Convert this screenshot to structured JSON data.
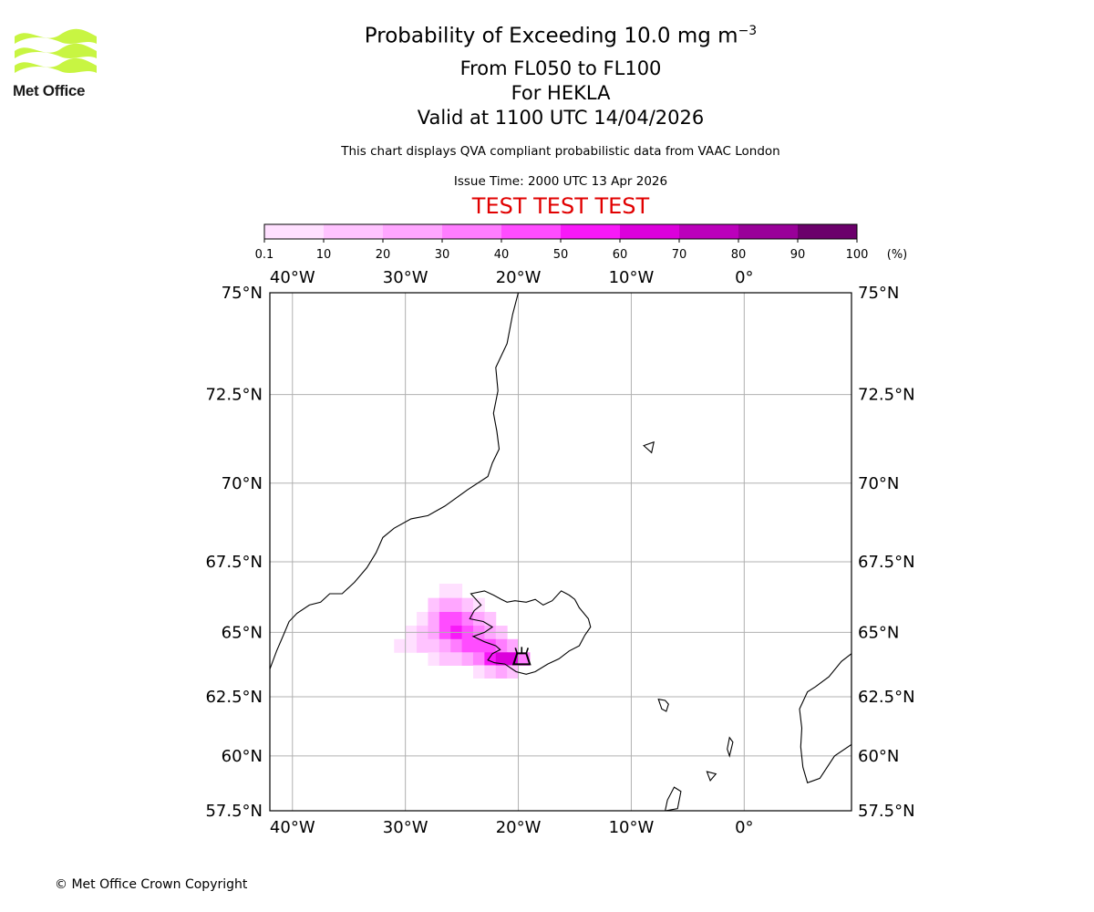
{
  "logo": {
    "text": "Met Office",
    "color": "#c8f542"
  },
  "header": {
    "title_prefix": "Probability of Exceeding 10.0 mg m",
    "title_exponent": "−3",
    "level": "From FL050 to FL100",
    "volcano": "For HEKLA",
    "valid": "Valid at 1100 UTC 14/04/2026",
    "note": "This chart displays QVA compliant probabilistic data from VAAC London",
    "issue_time": "Issue Time: 2000 UTC 13 Apr 2026",
    "test_banner": "TEST TEST TEST"
  },
  "colorbar": {
    "unit": "(%)",
    "ticks": [
      "0.1",
      "10",
      "20",
      "30",
      "40",
      "50",
      "60",
      "70",
      "80",
      "90",
      "100"
    ],
    "colors": [
      "#ffe0ff",
      "#ffc3ff",
      "#ffa6ff",
      "#ff7dff",
      "#ff4cff",
      "#f819f8",
      "#dc00dc",
      "#bb00bb",
      "#990099",
      "#6b006b"
    ]
  },
  "map": {
    "lon_range": [
      -42,
      9.5
    ],
    "lat_range": [
      57.5,
      75
    ],
    "lon_ticks": [
      {
        "value": -40,
        "label": "40°W"
      },
      {
        "value": -30,
        "label": "30°W"
      },
      {
        "value": -20,
        "label": "20°W"
      },
      {
        "value": -10,
        "label": "10°W"
      },
      {
        "value": 0,
        "label": "0°"
      }
    ],
    "lat_ticks": [
      {
        "value": 75,
        "label": "75°N"
      },
      {
        "value": 72.5,
        "label": "72.5°N"
      },
      {
        "value": 70,
        "label": "70°N"
      },
      {
        "value": 67.5,
        "label": "67.5°N"
      },
      {
        "value": 65,
        "label": "65°N"
      },
      {
        "value": 62.5,
        "label": "62.5°N"
      },
      {
        "value": 60,
        "label": "60°N"
      },
      {
        "value": 57.5,
        "label": "57.5°N"
      }
    ],
    "volcano_location": {
      "lon": -19.7,
      "lat": 64.0
    },
    "plume_cells": [
      {
        "lon": -26.5,
        "lat": 66.5,
        "pct": 5
      },
      {
        "lon": -25.5,
        "lat": 66.5,
        "pct": 5
      },
      {
        "lon": -27.5,
        "lat": 66.0,
        "pct": 15
      },
      {
        "lon": -26.5,
        "lat": 66.0,
        "pct": 25
      },
      {
        "lon": -25.5,
        "lat": 66.0,
        "pct": 25
      },
      {
        "lon": -24.5,
        "lat": 66.0,
        "pct": 15
      },
      {
        "lon": -23.5,
        "lat": 66.0,
        "pct": 5
      },
      {
        "lon": -28.5,
        "lat": 65.5,
        "pct": 5
      },
      {
        "lon": -27.5,
        "lat": 65.5,
        "pct": 25
      },
      {
        "lon": -26.5,
        "lat": 65.5,
        "pct": 45
      },
      {
        "lon": -25.5,
        "lat": 65.5,
        "pct": 45
      },
      {
        "lon": -24.5,
        "lat": 65.5,
        "pct": 35
      },
      {
        "lon": -23.5,
        "lat": 65.5,
        "pct": 25
      },
      {
        "lon": -22.5,
        "lat": 65.5,
        "pct": 15
      },
      {
        "lon": -29.5,
        "lat": 65.0,
        "pct": 5
      },
      {
        "lon": -28.5,
        "lat": 65.0,
        "pct": 15
      },
      {
        "lon": -27.5,
        "lat": 65.0,
        "pct": 25
      },
      {
        "lon": -26.5,
        "lat": 65.0,
        "pct": 45
      },
      {
        "lon": -25.5,
        "lat": 65.0,
        "pct": 55
      },
      {
        "lon": -24.5,
        "lat": 65.0,
        "pct": 45
      },
      {
        "lon": -23.5,
        "lat": 65.0,
        "pct": 35
      },
      {
        "lon": -22.5,
        "lat": 65.0,
        "pct": 25
      },
      {
        "lon": -21.5,
        "lat": 65.0,
        "pct": 15
      },
      {
        "lon": -30.5,
        "lat": 64.5,
        "pct": 5
      },
      {
        "lon": -29.5,
        "lat": 64.5,
        "pct": 5
      },
      {
        "lon": -28.5,
        "lat": 64.5,
        "pct": 15
      },
      {
        "lon": -27.5,
        "lat": 64.5,
        "pct": 15
      },
      {
        "lon": -26.5,
        "lat": 64.5,
        "pct": 25
      },
      {
        "lon": -25.5,
        "lat": 64.5,
        "pct": 35
      },
      {
        "lon": -24.5,
        "lat": 64.5,
        "pct": 45
      },
      {
        "lon": -23.5,
        "lat": 64.5,
        "pct": 45
      },
      {
        "lon": -22.5,
        "lat": 64.5,
        "pct": 45
      },
      {
        "lon": -21.5,
        "lat": 64.5,
        "pct": 35
      },
      {
        "lon": -20.5,
        "lat": 64.5,
        "pct": 25
      },
      {
        "lon": -27.5,
        "lat": 64.0,
        "pct": 5
      },
      {
        "lon": -26.5,
        "lat": 64.0,
        "pct": 15
      },
      {
        "lon": -25.5,
        "lat": 64.0,
        "pct": 15
      },
      {
        "lon": -24.5,
        "lat": 64.0,
        "pct": 25
      },
      {
        "lon": -23.5,
        "lat": 64.0,
        "pct": 35
      },
      {
        "lon": -22.5,
        "lat": 64.0,
        "pct": 55
      },
      {
        "lon": -21.5,
        "lat": 64.0,
        "pct": 65
      },
      {
        "lon": -20.5,
        "lat": 64.0,
        "pct": 65
      },
      {
        "lon": -19.5,
        "lat": 64.0,
        "pct": 35
      },
      {
        "lon": -23.5,
        "lat": 63.5,
        "pct": 5
      },
      {
        "lon": -22.5,
        "lat": 63.5,
        "pct": 15
      },
      {
        "lon": -21.5,
        "lat": 63.5,
        "pct": 25
      },
      {
        "lon": -20.5,
        "lat": 63.5,
        "pct": 15
      }
    ],
    "coastlines": [
      [
        [
          -42,
          63.6
        ],
        [
          -41.4,
          64.3
        ],
        [
          -40.8,
          64.9
        ],
        [
          -40.3,
          65.4
        ],
        [
          -39.6,
          65.7
        ],
        [
          -38.5,
          66.0
        ],
        [
          -37.5,
          66.1
        ],
        [
          -36.7,
          66.4
        ],
        [
          -35.6,
          66.4
        ],
        [
          -34.5,
          66.8
        ],
        [
          -33.4,
          67.3
        ],
        [
          -32.6,
          67.8
        ],
        [
          -32.0,
          68.3
        ],
        [
          -31.0,
          68.6
        ],
        [
          -29.5,
          68.9
        ],
        [
          -28.0,
          69.0
        ],
        [
          -26.5,
          69.3
        ],
        [
          -24.5,
          69.8
        ],
        [
          -22.7,
          70.2
        ],
        [
          -22.3,
          70.6
        ],
        [
          -21.7,
          71.0
        ],
        [
          -21.9,
          71.5
        ],
        [
          -22.2,
          72.0
        ],
        [
          -21.8,
          72.6
        ],
        [
          -22.0,
          73.2
        ],
        [
          -21.0,
          73.8
        ],
        [
          -20.5,
          74.5
        ],
        [
          -20.0,
          75.0
        ]
      ]
    ],
    "islands": [
      [
        [
          -24.2,
          66.4
        ],
        [
          -23.0,
          66.5
        ],
        [
          -22.2,
          66.35
        ],
        [
          -21.5,
          66.2
        ],
        [
          -21.0,
          66.1
        ],
        [
          -20.3,
          66.15
        ],
        [
          -19.3,
          66.1
        ],
        [
          -18.5,
          66.2
        ],
        [
          -17.8,
          66.0
        ],
        [
          -17.0,
          66.15
        ],
        [
          -16.2,
          66.5
        ],
        [
          -15.5,
          66.35
        ],
        [
          -15.0,
          66.2
        ],
        [
          -14.6,
          65.9
        ],
        [
          -13.8,
          65.5
        ],
        [
          -13.6,
          65.2
        ],
        [
          -14.1,
          64.9
        ],
        [
          -14.6,
          64.5
        ],
        [
          -15.5,
          64.3
        ],
        [
          -16.4,
          64.0
        ],
        [
          -17.4,
          63.8
        ],
        [
          -18.5,
          63.5
        ],
        [
          -19.3,
          63.4
        ],
        [
          -20.2,
          63.5
        ],
        [
          -21.2,
          63.8
        ],
        [
          -22.1,
          63.85
        ],
        [
          -22.7,
          63.95
        ],
        [
          -22.3,
          64.2
        ],
        [
          -21.6,
          64.35
        ],
        [
          -22.0,
          64.5
        ],
        [
          -23.0,
          64.65
        ],
        [
          -24.0,
          64.85
        ],
        [
          -23.0,
          65.0
        ],
        [
          -22.3,
          65.2
        ],
        [
          -23.1,
          65.4
        ],
        [
          -24.3,
          65.5
        ],
        [
          -23.9,
          65.8
        ],
        [
          -23.3,
          66.0
        ],
        [
          -24.2,
          66.4
        ]
      ],
      [
        [
          -7.6,
          62.4
        ],
        [
          -7.0,
          62.35
        ],
        [
          -6.7,
          62.2
        ],
        [
          -6.9,
          61.9
        ],
        [
          -7.3,
          62.0
        ],
        [
          -7.6,
          62.4
        ]
      ],
      [
        [
          -8.9,
          71.1
        ],
        [
          -8.0,
          71.2
        ],
        [
          -8.2,
          70.9
        ],
        [
          -8.9,
          71.1
        ]
      ],
      [
        [
          -1.3,
          60.8
        ],
        [
          -1.0,
          60.6
        ],
        [
          -1.3,
          60.0
        ],
        [
          -1.5,
          60.3
        ],
        [
          -1.3,
          60.8
        ]
      ],
      [
        [
          -6.2,
          58.6
        ],
        [
          -5.6,
          58.4
        ],
        [
          -5.9,
          57.6
        ],
        [
          -7.0,
          57.5
        ],
        [
          -6.8,
          58.0
        ],
        [
          -6.2,
          58.6
        ]
      ],
      [
        [
          -3.0,
          58.9
        ],
        [
          -2.5,
          59.2
        ],
        [
          -3.3,
          59.3
        ],
        [
          -3.0,
          58.9
        ]
      ],
      [
        [
          4.9,
          62.0
        ],
        [
          5.6,
          62.7
        ],
        [
          6.3,
          62.9
        ],
        [
          7.5,
          63.3
        ],
        [
          8.6,
          63.9
        ],
        [
          9.5,
          64.2
        ],
        [
          9.5,
          60.5
        ],
        [
          8.0,
          60.0
        ],
        [
          6.7,
          59.0
        ],
        [
          5.6,
          58.8
        ],
        [
          5.2,
          59.5
        ],
        [
          5.0,
          60.4
        ],
        [
          5.1,
          61.2
        ],
        [
          4.9,
          62.0
        ]
      ]
    ]
  }
}
